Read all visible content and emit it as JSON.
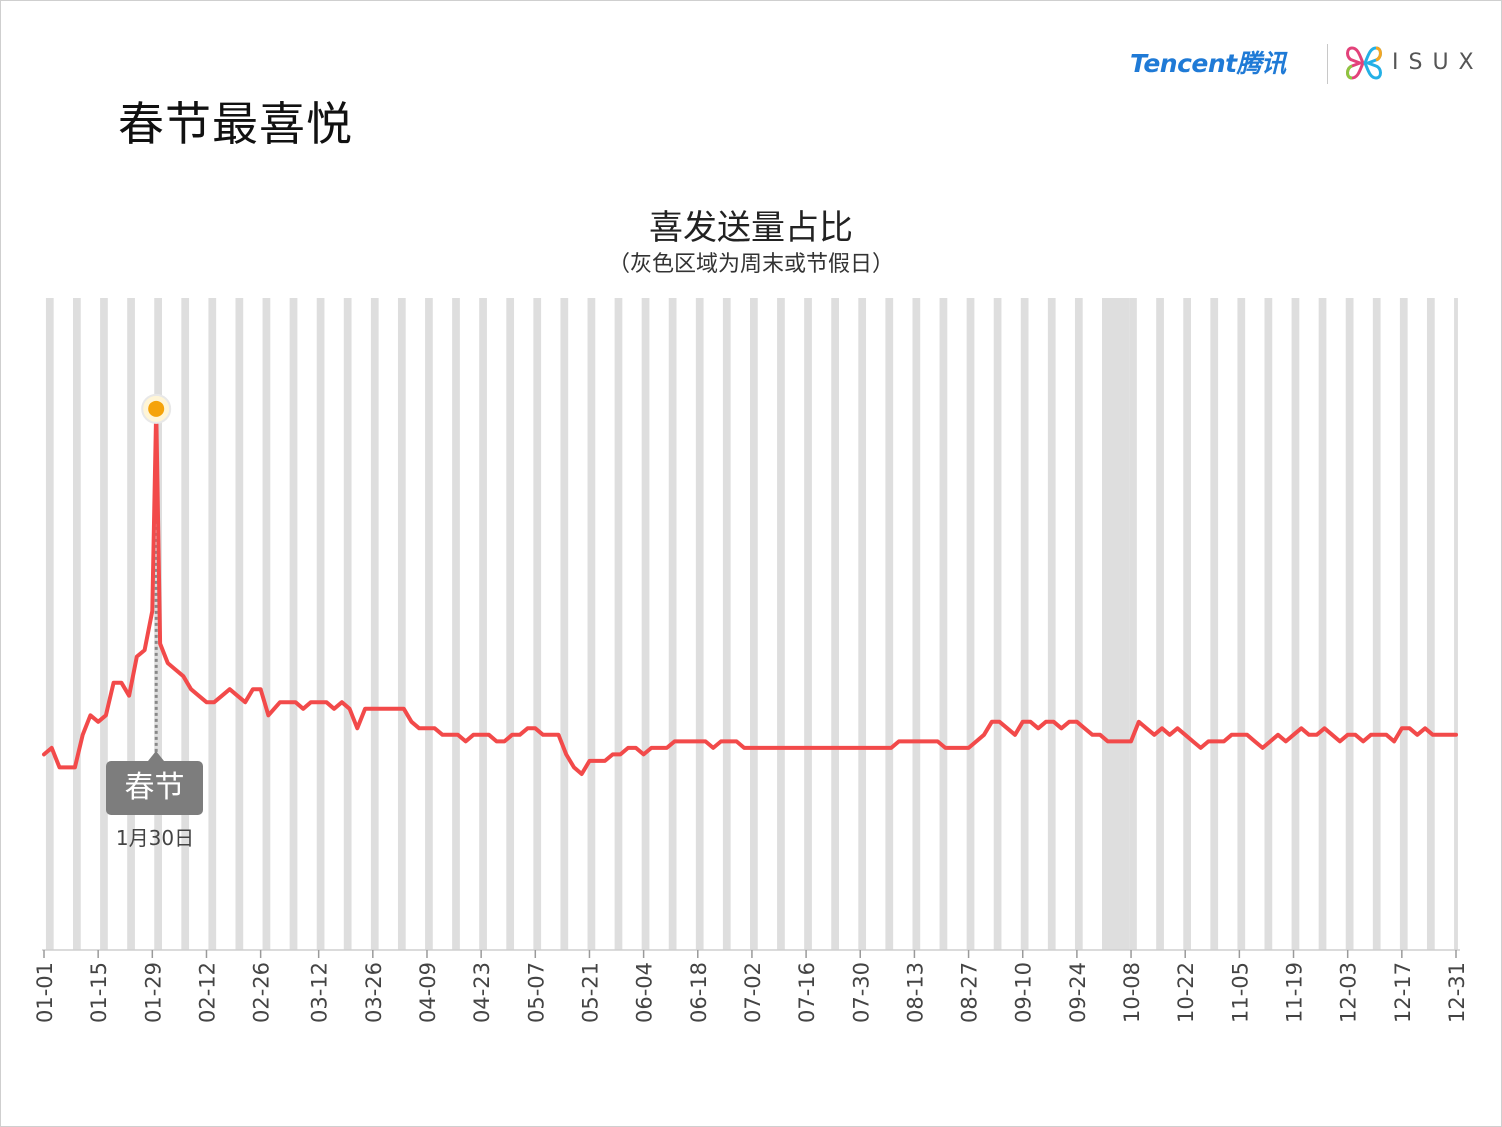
{
  "page": {
    "title": "春节最喜悦"
  },
  "logos": {
    "tencent": "Tencent腾讯",
    "isux": "ISUX"
  },
  "chart_data": {
    "type": "line",
    "title": "喜发送量占比",
    "subtitle": "（灰色区域为周末或节假日）",
    "x_tick_labels": [
      "01-01",
      "01-15",
      "01-29",
      "02-12",
      "02-26",
      "03-12",
      "03-26",
      "04-09",
      "04-23",
      "05-07",
      "05-21",
      "06-04",
      "06-18",
      "07-02",
      "07-16",
      "07-30",
      "08-13",
      "08-27",
      "09-10",
      "09-24",
      "10-08",
      "10-22",
      "11-05",
      "11-19",
      "12-03",
      "12-17",
      "12-31"
    ],
    "x_start": "01-01",
    "x_end": "12-31",
    "y_range": [
      0,
      100
    ],
    "y_axis_visible": false,
    "grid": false,
    "legend": "none",
    "shaded_regions": "weekends and holidays (gray bands)",
    "holiday_band": [
      "10-01",
      "10-07"
    ],
    "series": [
      {
        "color": "#f24a4a",
        "points": [
          [
            "01-01",
            30
          ],
          [
            "01-03",
            31
          ],
          [
            "01-05",
            28
          ],
          [
            "01-07",
            28
          ],
          [
            "01-09",
            28
          ],
          [
            "01-11",
            33
          ],
          [
            "01-13",
            36
          ],
          [
            "01-15",
            35
          ],
          [
            "01-17",
            36
          ],
          [
            "01-19",
            41
          ],
          [
            "01-21",
            41
          ],
          [
            "01-23",
            39
          ],
          [
            "01-25",
            45
          ],
          [
            "01-27",
            46
          ],
          [
            "01-29",
            52
          ],
          [
            "01-30",
            83
          ],
          [
            "01-31",
            47
          ],
          [
            "02-02",
            44
          ],
          [
            "02-04",
            43
          ],
          [
            "02-06",
            42
          ],
          [
            "02-08",
            40
          ],
          [
            "02-10",
            39
          ],
          [
            "02-12",
            38
          ],
          [
            "02-14",
            38
          ],
          [
            "02-16",
            39
          ],
          [
            "02-18",
            40
          ],
          [
            "02-20",
            39
          ],
          [
            "02-22",
            38
          ],
          [
            "02-24",
            40
          ],
          [
            "02-26",
            40
          ],
          [
            "02-28",
            36
          ],
          [
            "03-02",
            38
          ],
          [
            "03-04",
            38
          ],
          [
            "03-06",
            38
          ],
          [
            "03-08",
            37
          ],
          [
            "03-10",
            38
          ],
          [
            "03-12",
            38
          ],
          [
            "03-14",
            38
          ],
          [
            "03-16",
            37
          ],
          [
            "03-18",
            38
          ],
          [
            "03-20",
            37
          ],
          [
            "03-22",
            34
          ],
          [
            "03-24",
            37
          ],
          [
            "03-26",
            37
          ],
          [
            "03-28",
            37
          ],
          [
            "03-30",
            37
          ],
          [
            "04-01",
            37
          ],
          [
            "04-03",
            37
          ],
          [
            "04-05",
            35
          ],
          [
            "04-07",
            34
          ],
          [
            "04-09",
            34
          ],
          [
            "04-11",
            34
          ],
          [
            "04-13",
            33
          ],
          [
            "04-15",
            33
          ],
          [
            "04-17",
            33
          ],
          [
            "04-19",
            32
          ],
          [
            "04-21",
            33
          ],
          [
            "04-23",
            33
          ],
          [
            "04-25",
            33
          ],
          [
            "04-27",
            32
          ],
          [
            "04-29",
            32
          ],
          [
            "05-01",
            33
          ],
          [
            "05-03",
            33
          ],
          [
            "05-05",
            34
          ],
          [
            "05-07",
            34
          ],
          [
            "05-09",
            33
          ],
          [
            "05-11",
            33
          ],
          [
            "05-13",
            33
          ],
          [
            "05-15",
            30
          ],
          [
            "05-17",
            28
          ],
          [
            "05-19",
            27
          ],
          [
            "05-21",
            29
          ],
          [
            "05-23",
            29
          ],
          [
            "05-25",
            29
          ],
          [
            "05-27",
            30
          ],
          [
            "05-29",
            30
          ],
          [
            "05-31",
            31
          ],
          [
            "06-02",
            31
          ],
          [
            "06-04",
            30
          ],
          [
            "06-06",
            31
          ],
          [
            "06-08",
            31
          ],
          [
            "06-10",
            31
          ],
          [
            "06-12",
            32
          ],
          [
            "06-14",
            32
          ],
          [
            "06-16",
            32
          ],
          [
            "06-18",
            32
          ],
          [
            "06-20",
            32
          ],
          [
            "06-22",
            31
          ],
          [
            "06-24",
            32
          ],
          [
            "06-26",
            32
          ],
          [
            "06-28",
            32
          ],
          [
            "06-30",
            31
          ],
          [
            "07-02",
            31
          ],
          [
            "07-04",
            31
          ],
          [
            "07-06",
            31
          ],
          [
            "07-08",
            31
          ],
          [
            "07-10",
            31
          ],
          [
            "07-12",
            31
          ],
          [
            "07-14",
            31
          ],
          [
            "07-16",
            31
          ],
          [
            "07-18",
            31
          ],
          [
            "07-20",
            31
          ],
          [
            "07-22",
            31
          ],
          [
            "07-24",
            31
          ],
          [
            "07-26",
            31
          ],
          [
            "07-28",
            31
          ],
          [
            "07-30",
            31
          ],
          [
            "08-01",
            31
          ],
          [
            "08-03",
            31
          ],
          [
            "08-05",
            31
          ],
          [
            "08-07",
            31
          ],
          [
            "08-09",
            32
          ],
          [
            "08-11",
            32
          ],
          [
            "08-13",
            32
          ],
          [
            "08-15",
            32
          ],
          [
            "08-17",
            32
          ],
          [
            "08-19",
            32
          ],
          [
            "08-21",
            31
          ],
          [
            "08-23",
            31
          ],
          [
            "08-25",
            31
          ],
          [
            "08-27",
            31
          ],
          [
            "08-29",
            32
          ],
          [
            "08-31",
            33
          ],
          [
            "09-02",
            35
          ],
          [
            "09-04",
            35
          ],
          [
            "09-06",
            34
          ],
          [
            "09-08",
            33
          ],
          [
            "09-10",
            35
          ],
          [
            "09-12",
            35
          ],
          [
            "09-14",
            34
          ],
          [
            "09-16",
            35
          ],
          [
            "09-18",
            35
          ],
          [
            "09-20",
            34
          ],
          [
            "09-22",
            35
          ],
          [
            "09-24",
            35
          ],
          [
            "09-26",
            34
          ],
          [
            "09-28",
            33
          ],
          [
            "09-30",
            33
          ],
          [
            "10-02",
            32
          ],
          [
            "10-04",
            32
          ],
          [
            "10-06",
            32
          ],
          [
            "10-08",
            32
          ],
          [
            "10-10",
            35
          ],
          [
            "10-12",
            34
          ],
          [
            "10-14",
            33
          ],
          [
            "10-16",
            34
          ],
          [
            "10-18",
            33
          ],
          [
            "10-20",
            34
          ],
          [
            "10-22",
            33
          ],
          [
            "10-24",
            32
          ],
          [
            "10-26",
            31
          ],
          [
            "10-28",
            32
          ],
          [
            "10-30",
            32
          ],
          [
            "11-01",
            32
          ],
          [
            "11-03",
            33
          ],
          [
            "11-05",
            33
          ],
          [
            "11-07",
            33
          ],
          [
            "11-09",
            32
          ],
          [
            "11-11",
            31
          ],
          [
            "11-13",
            32
          ],
          [
            "11-15",
            33
          ],
          [
            "11-17",
            32
          ],
          [
            "11-19",
            33
          ],
          [
            "11-21",
            34
          ],
          [
            "11-23",
            33
          ],
          [
            "11-25",
            33
          ],
          [
            "11-27",
            34
          ],
          [
            "11-29",
            33
          ],
          [
            "12-01",
            32
          ],
          [
            "12-03",
            33
          ],
          [
            "12-05",
            33
          ],
          [
            "12-07",
            32
          ],
          [
            "12-09",
            33
          ],
          [
            "12-11",
            33
          ],
          [
            "12-13",
            33
          ],
          [
            "12-15",
            32
          ],
          [
            "12-17",
            34
          ],
          [
            "12-19",
            34
          ],
          [
            "12-21",
            33
          ],
          [
            "12-23",
            34
          ],
          [
            "12-25",
            33
          ],
          [
            "12-27",
            33
          ],
          [
            "12-29",
            33
          ],
          [
            "12-31",
            33
          ]
        ]
      }
    ],
    "annotation": {
      "label": "春节",
      "date_label": "1月30日",
      "x": "01-30",
      "y": 83
    }
  }
}
